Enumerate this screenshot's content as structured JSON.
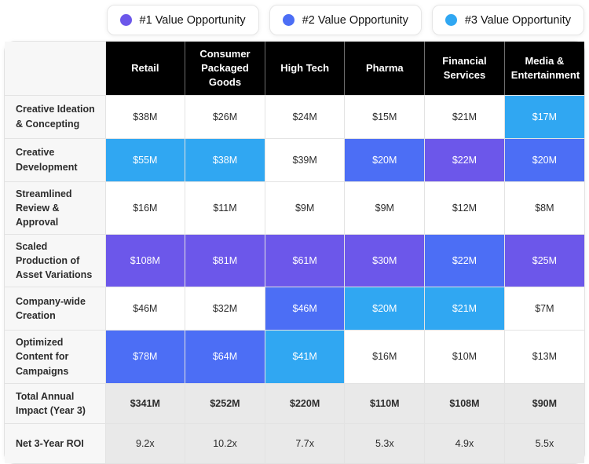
{
  "colors": {
    "tier1": "#6C57EA",
    "tier2": "#4C6EF5",
    "tier3": "#30A7F2",
    "header_bg": "#000000",
    "header_text": "#FFFFFF",
    "label_col_bg": "#F7F7F7",
    "summary_bg": "#E9E9E9",
    "cell_border": "#E3E3E3",
    "text": "#2C2C2C"
  },
  "legend": {
    "items": [
      {
        "label": "#1 Value Opportunity",
        "tier": 1
      },
      {
        "label": "#2 Value Opportunity",
        "tier": 2
      },
      {
        "label": "#3 Value Opportunity",
        "tier": 3
      }
    ]
  },
  "chart_data": {
    "type": "table",
    "legend": [
      "#1 Value Opportunity",
      "#2 Value Opportunity",
      "#3 Value Opportunity"
    ],
    "columns": [
      "Retail",
      "Consumer Packaged Goods",
      "High Tech",
      "Pharma",
      "Financial Services",
      "Media & Entertainment"
    ],
    "rows": [
      {
        "label": "Creative Ideation & Concepting",
        "values": [
          "$38M",
          "$26M",
          "$24M",
          "$15M",
          "$21M",
          "$17M"
        ],
        "tiers": [
          0,
          0,
          0,
          0,
          0,
          3
        ],
        "style": "data",
        "bold_values": false
      },
      {
        "label": "Creative Development",
        "values": [
          "$55M",
          "$38M",
          "$39M",
          "$20M",
          "$22M",
          "$20M"
        ],
        "tiers": [
          3,
          3,
          0,
          2,
          1,
          2
        ],
        "style": "data",
        "bold_values": false
      },
      {
        "label": "Streamlined Review & Approval",
        "values": [
          "$16M",
          "$11M",
          "$9M",
          "$9M",
          "$12M",
          "$8M"
        ],
        "tiers": [
          0,
          0,
          0,
          0,
          0,
          0
        ],
        "style": "data",
        "bold_values": false
      },
      {
        "label": "Scaled Production of Asset Variations",
        "values": [
          "$108M",
          "$81M",
          "$61M",
          "$30M",
          "$22M",
          "$25M"
        ],
        "tiers": [
          1,
          1,
          1,
          1,
          2,
          1
        ],
        "style": "data",
        "bold_values": false
      },
      {
        "label": "Company-wide Creation",
        "values": [
          "$46M",
          "$32M",
          "$46M",
          "$20M",
          "$21M",
          "$7M"
        ],
        "tiers": [
          0,
          0,
          2,
          3,
          3,
          0
        ],
        "style": "data",
        "bold_values": false
      },
      {
        "label": "Optimized Content for Campaigns",
        "values": [
          "$78M",
          "$64M",
          "$41M",
          "$16M",
          "$10M",
          "$13M"
        ],
        "tiers": [
          2,
          2,
          3,
          0,
          0,
          0
        ],
        "style": "data",
        "bold_values": false
      },
      {
        "label": "Total Annual Impact (Year 3)",
        "values": [
          "$341M",
          "$252M",
          "$220M",
          "$110M",
          "$108M",
          "$90M"
        ],
        "tiers": [
          0,
          0,
          0,
          0,
          0,
          0
        ],
        "style": "summary",
        "bold_values": true
      },
      {
        "label": "Net 3-Year ROI",
        "values": [
          "9.2x",
          "10.2x",
          "7.7x",
          "5.3x",
          "4.9x",
          "5.5x"
        ],
        "tiers": [
          0,
          0,
          0,
          0,
          0,
          0
        ],
        "style": "summary",
        "bold_values": false
      }
    ]
  }
}
